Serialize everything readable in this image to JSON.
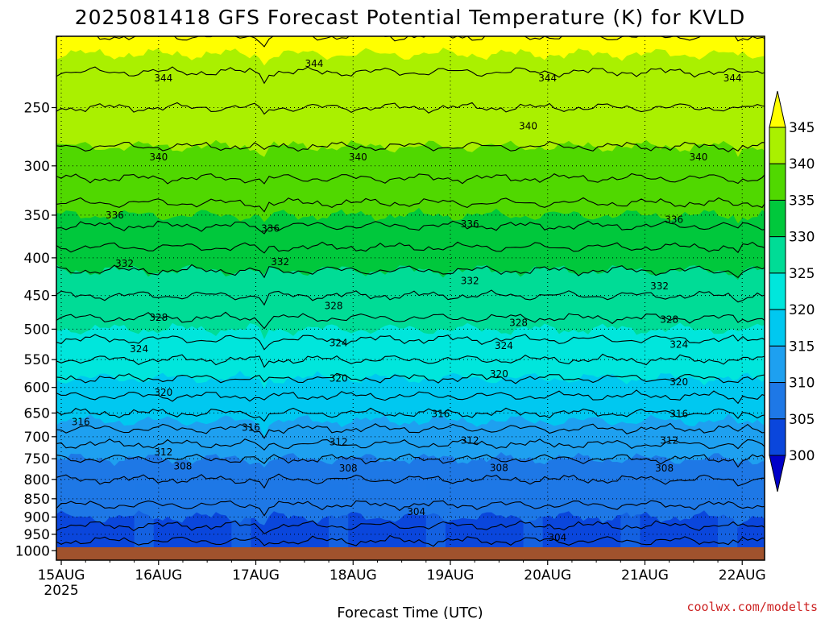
{
  "title": "2025081418 GFS Forecast Potential Temperature (K) for KVLD",
  "credit": "coolwx.com/modelts",
  "chart_data": {
    "type": "filled-contour",
    "title": "2025081418 GFS Forecast Potential Temperature (K) for KVLD",
    "xlabel": "Forecast Time (UTC)",
    "ylabel": "",
    "x_ticks": [
      {
        "label": "15AUG",
        "sub": "2025",
        "day": 0
      },
      {
        "label": "16AUG",
        "sub": "",
        "day": 1
      },
      {
        "label": "17AUG",
        "sub": "",
        "day": 2
      },
      {
        "label": "18AUG",
        "sub": "",
        "day": 3
      },
      {
        "label": "19AUG",
        "sub": "",
        "day": 4
      },
      {
        "label": "20AUG",
        "sub": "",
        "day": 5
      },
      {
        "label": "21AUG",
        "sub": "",
        "day": 6
      },
      {
        "label": "22AUG",
        "sub": "",
        "day": 7
      }
    ],
    "xlim_days": [
      -0.05,
      7.23
    ],
    "y_pressure_ticks": [
      250,
      300,
      350,
      400,
      450,
      500,
      550,
      600,
      650,
      700,
      750,
      800,
      850,
      900,
      950,
      1000
    ],
    "y_log_scale": true,
    "ylim_hpa": [
      200,
      1030
    ],
    "grid": "dotted at ticks",
    "colorbar": {
      "levels": [
        300,
        305,
        310,
        315,
        320,
        325,
        330,
        335,
        340,
        345
      ],
      "colors": [
        "#0000c8",
        "#0a46dc",
        "#1e78e6",
        "#1ea0f0",
        "#00c8f0",
        "#00e6dc",
        "#00dc96",
        "#00c83c",
        "#50d800",
        "#aaf000",
        "#ffff00"
      ],
      "extend": "both",
      "placement": "right"
    },
    "ground_color": "#a0522d",
    "profile": [
      {
        "p": 1000,
        "theta": 300.5
      },
      {
        "p": 950,
        "theta": 303
      },
      {
        "p": 900,
        "theta": 305
      },
      {
        "p": 850,
        "theta": 306.5
      },
      {
        "p": 800,
        "theta": 308
      },
      {
        "p": 750,
        "theta": 310
      },
      {
        "p": 700,
        "theta": 313
      },
      {
        "p": 650,
        "theta": 316
      },
      {
        "p": 600,
        "theta": 319
      },
      {
        "p": 550,
        "theta": 322
      },
      {
        "p": 500,
        "theta": 325
      },
      {
        "p": 450,
        "theta": 328
      },
      {
        "p": 400,
        "theta": 331
      },
      {
        "p": 350,
        "theta": 335
      },
      {
        "p": 300,
        "theta": 339
      },
      {
        "p": 250,
        "theta": 342
      },
      {
        "p": 200,
        "theta": 346
      }
    ],
    "contour_interval": 2,
    "contour_labels": [
      {
        "text": "344",
        "day": 1.05,
        "p": 228
      },
      {
        "text": "344",
        "day": 2.6,
        "p": 218
      },
      {
        "text": "344",
        "day": 5.0,
        "p": 228
      },
      {
        "text": "344",
        "day": 6.9,
        "p": 228
      },
      {
        "text": "340",
        "day": 4.8,
        "p": 265
      },
      {
        "text": "340",
        "day": 1.0,
        "p": 292
      },
      {
        "text": "340",
        "day": 3.05,
        "p": 292
      },
      {
        "text": "340",
        "day": 6.55,
        "p": 292
      },
      {
        "text": "336",
        "day": 0.55,
        "p": 350
      },
      {
        "text": "336",
        "day": 2.15,
        "p": 365
      },
      {
        "text": "336",
        "day": 4.2,
        "p": 360
      },
      {
        "text": "336",
        "day": 6.3,
        "p": 355
      },
      {
        "text": "332",
        "day": 0.65,
        "p": 407
      },
      {
        "text": "332",
        "day": 2.25,
        "p": 405
      },
      {
        "text": "332",
        "day": 4.2,
        "p": 430
      },
      {
        "text": "332",
        "day": 6.15,
        "p": 437
      },
      {
        "text": "328",
        "day": 1.0,
        "p": 482
      },
      {
        "text": "328",
        "day": 2.8,
        "p": 465
      },
      {
        "text": "328",
        "day": 4.7,
        "p": 490
      },
      {
        "text": "328",
        "day": 6.25,
        "p": 485
      },
      {
        "text": "324",
        "day": 0.8,
        "p": 532
      },
      {
        "text": "324",
        "day": 2.85,
        "p": 522
      },
      {
        "text": "324",
        "day": 4.55,
        "p": 527
      },
      {
        "text": "324",
        "day": 6.35,
        "p": 525
      },
      {
        "text": "320",
        "day": 1.05,
        "p": 610
      },
      {
        "text": "320",
        "day": 2.85,
        "p": 583
      },
      {
        "text": "320",
        "day": 4.5,
        "p": 575
      },
      {
        "text": "320",
        "day": 6.35,
        "p": 590
      },
      {
        "text": "316",
        "day": 0.2,
        "p": 668
      },
      {
        "text": "316",
        "day": 1.95,
        "p": 680
      },
      {
        "text": "316",
        "day": 3.9,
        "p": 652
      },
      {
        "text": "316",
        "day": 6.35,
        "p": 652
      },
      {
        "text": "312",
        "day": 1.05,
        "p": 735
      },
      {
        "text": "312",
        "day": 2.85,
        "p": 712
      },
      {
        "text": "312",
        "day": 4.2,
        "p": 708
      },
      {
        "text": "312",
        "day": 6.25,
        "p": 708
      },
      {
        "text": "308",
        "day": 1.25,
        "p": 768
      },
      {
        "text": "308",
        "day": 2.95,
        "p": 773
      },
      {
        "text": "308",
        "day": 4.5,
        "p": 772
      },
      {
        "text": "308",
        "day": 6.2,
        "p": 773
      },
      {
        "text": "304",
        "day": 3.65,
        "p": 885
      },
      {
        "text": "304",
        "day": 5.1,
        "p": 960
      }
    ]
  }
}
